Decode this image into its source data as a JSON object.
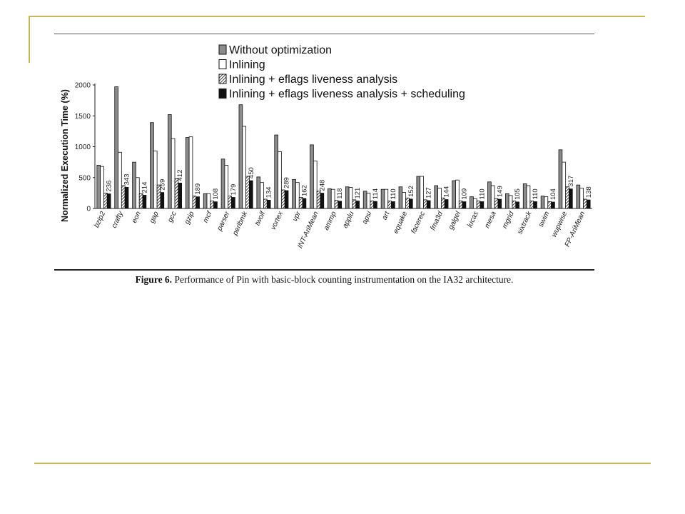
{
  "figure": {
    "caption_label": "Figure 6.",
    "caption_text": "Performance of Pin with basic-block counting instrumentation on the IA32 architecture."
  },
  "chart_data": {
    "type": "bar",
    "title": "",
    "xlabel": "",
    "ylabel": "Normalized Execution Time (%)",
    "ylim": [
      0,
      2000
    ],
    "yticks": [
      0,
      500,
      1000,
      1500,
      2000
    ],
    "legend_position": "top",
    "categories": [
      "bzip2",
      "crafty",
      "eon",
      "gap",
      "gcc",
      "gzip",
      "mcf",
      "parser",
      "perlbmk",
      "twolf",
      "vortex",
      "vpr",
      "INT-AriMean",
      "ammp",
      "applu",
      "apsi",
      "art",
      "equake",
      "facerec",
      "fma3d",
      "galgel",
      "lucas",
      "mesa",
      "mgrid",
      "sixtrack",
      "swim",
      "wupwise",
      "FP-AriMean"
    ],
    "series": [
      {
        "name": "Without optimization",
        "fill": "gray",
        "values": [
          700,
          1970,
          750,
          1390,
          1520,
          1150,
          240,
          800,
          1680,
          510,
          1190,
          470,
          1030,
          320,
          350,
          280,
          310,
          350,
          520,
          370,
          450,
          190,
          430,
          240,
          400,
          200,
          950,
          380
        ]
      },
      {
        "name": "Inlining",
        "fill": "white",
        "values": [
          680,
          910,
          500,
          930,
          1130,
          1160,
          240,
          700,
          1330,
          420,
          920,
          420,
          770,
          310,
          340,
          250,
          310,
          260,
          520,
          330,
          460,
          160,
          370,
          210,
          370,
          190,
          750,
          330
        ]
      },
      {
        "name": "Inlining + eflags liveness analysis",
        "fill": "hatched",
        "values": [
          250,
          370,
          240,
          380,
          480,
          200,
          120,
          200,
          520,
          150,
          300,
          180,
          280,
          130,
          140,
          120,
          120,
          170,
          140,
          170,
          120,
          120,
          160,
          120,
          120,
          110,
          350,
          150
        ]
      },
      {
        "name": "Inlining + eflags liveness analysis + scheduling",
        "fill": "black",
        "values": [
          236,
          343,
          214,
          259,
          412,
          189,
          108,
          179,
          450,
          134,
          289,
          162,
          248,
          118,
          121,
          114,
          110,
          152,
          127,
          144,
          109,
          110,
          149,
          105,
          110,
          104,
          317,
          138
        ]
      }
    ],
    "data_labels": [
      "236",
      "343",
      "214",
      "259",
      "412",
      "189",
      "108",
      "179",
      "450",
      "134",
      "289",
      "162",
      "248",
      "118",
      "121",
      "114",
      "110",
      "152",
      "127",
      "144",
      "109",
      "110",
      "149",
      "105",
      "110",
      "104",
      "317",
      "138"
    ],
    "colors": {
      "gray": "#8c8c8c",
      "white": "#ffffff",
      "black": "#111111",
      "frame": "#c8b560"
    }
  }
}
